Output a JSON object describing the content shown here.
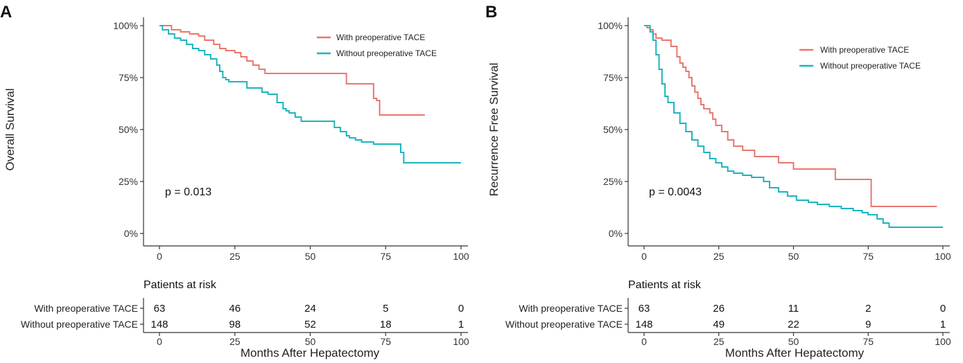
{
  "chart_data": [
    {
      "panel_label": "A",
      "type": "line",
      "subtype": "kaplan-meier step curve",
      "ylabel": "Overall Survival",
      "xlabel": "Months After Hepatectomy",
      "xlim": [
        0,
        100
      ],
      "ylim": [
        0,
        1
      ],
      "x_ticks": [
        "0",
        "25",
        "50",
        "75",
        "100"
      ],
      "y_ticks": [
        "0%",
        "25%",
        "50%",
        "75%",
        "100%"
      ],
      "grid": false,
      "legend_position": "top-right",
      "p_value_text": "p = 0.013",
      "series": [
        {
          "name": "With preoperative TACE",
          "color": "#E8776E",
          "x": [
            0,
            4,
            7,
            10,
            13,
            15,
            18,
            20,
            22,
            25,
            27,
            29,
            31,
            33,
            35,
            62,
            71,
            72,
            73,
            88
          ],
          "y": [
            1.0,
            0.98,
            0.97,
            0.96,
            0.95,
            0.93,
            0.91,
            0.89,
            0.88,
            0.87,
            0.85,
            0.83,
            0.81,
            0.79,
            0.77,
            0.72,
            0.65,
            0.64,
            0.57,
            0.57
          ]
        },
        {
          "name": "Without preoperative TACE",
          "color": "#1CB4BE",
          "x": [
            0,
            1,
            3,
            5,
            7,
            9,
            11,
            13,
            15,
            17,
            19,
            20,
            21,
            22,
            23,
            24,
            29,
            34,
            36,
            39,
            41,
            42,
            43,
            45,
            47,
            58,
            60,
            62,
            63,
            65,
            67,
            71,
            80,
            81,
            100
          ],
          "y": [
            1.0,
            0.98,
            0.96,
            0.94,
            0.93,
            0.91,
            0.89,
            0.88,
            0.86,
            0.84,
            0.81,
            0.78,
            0.75,
            0.74,
            0.73,
            0.73,
            0.7,
            0.68,
            0.67,
            0.63,
            0.6,
            0.59,
            0.58,
            0.56,
            0.54,
            0.51,
            0.49,
            0.47,
            0.46,
            0.45,
            0.44,
            0.43,
            0.39,
            0.34,
            0.34
          ]
        }
      ],
      "risk_table": {
        "title": "Patients at risk",
        "x_ticks": [
          "0",
          "25",
          "50",
          "75",
          "100"
        ],
        "rows": [
          {
            "label": "With preoperative TACE",
            "values": [
              "63",
              "46",
              "24",
              "5",
              "0"
            ]
          },
          {
            "label": "Without preoperative TACE",
            "values": [
              "148",
              "98",
              "52",
              "18",
              "1"
            ]
          }
        ],
        "xlabel": "Months After Hepatectomy"
      }
    },
    {
      "panel_label": "B",
      "type": "line",
      "subtype": "kaplan-meier step curve",
      "ylabel": "Recurrence Free Survival",
      "xlabel": "Months After Hepatectomy",
      "xlim": [
        0,
        100
      ],
      "ylim": [
        0,
        1
      ],
      "x_ticks": [
        "0",
        "25",
        "50",
        "75",
        "100"
      ],
      "y_ticks": [
        "0%",
        "25%",
        "50%",
        "75%",
        "100%"
      ],
      "grid": false,
      "legend_position": "top-right",
      "p_value_text": "p = 0.0043",
      "series": [
        {
          "name": "With preoperative TACE",
          "color": "#E8776E",
          "x": [
            0,
            1,
            2,
            3,
            4,
            6,
            9,
            11,
            12,
            13,
            14,
            15,
            16,
            17,
            18,
            19,
            20,
            22,
            23,
            24,
            26,
            28,
            30,
            33,
            37,
            45,
            50,
            64,
            76,
            98
          ],
          "y": [
            1.0,
            0.99,
            0.98,
            0.96,
            0.94,
            0.93,
            0.9,
            0.85,
            0.82,
            0.8,
            0.78,
            0.75,
            0.71,
            0.68,
            0.65,
            0.62,
            0.6,
            0.58,
            0.55,
            0.52,
            0.49,
            0.45,
            0.42,
            0.4,
            0.37,
            0.34,
            0.31,
            0.26,
            0.13,
            0.13
          ]
        },
        {
          "name": "Without preoperative TACE",
          "color": "#1CB4BE",
          "x": [
            0,
            2,
            3,
            4,
            5,
            6,
            7,
            8,
            10,
            12,
            14,
            16,
            18,
            20,
            22,
            24,
            26,
            28,
            30,
            33,
            36,
            40,
            42,
            45,
            48,
            51,
            55,
            58,
            62,
            66,
            70,
            73,
            75,
            78,
            80,
            82,
            100
          ],
          "y": [
            1.0,
            0.97,
            0.93,
            0.86,
            0.79,
            0.72,
            0.66,
            0.63,
            0.58,
            0.53,
            0.49,
            0.45,
            0.42,
            0.39,
            0.36,
            0.34,
            0.32,
            0.3,
            0.29,
            0.28,
            0.27,
            0.25,
            0.22,
            0.2,
            0.18,
            0.16,
            0.15,
            0.14,
            0.13,
            0.12,
            0.11,
            0.1,
            0.09,
            0.07,
            0.05,
            0.03,
            0.03
          ]
        }
      ],
      "risk_table": {
        "title": "Patients at risk",
        "x_ticks": [
          "0",
          "25",
          "50",
          "75",
          "100"
        ],
        "rows": [
          {
            "label": "With preoperative TACE",
            "values": [
              "63",
              "26",
              "11",
              "2",
              "0"
            ]
          },
          {
            "label": "Without preoperative TACE",
            "values": [
              "148",
              "49",
              "22",
              "9",
              "1"
            ]
          }
        ],
        "xlabel": "Months After Hepatectomy"
      }
    }
  ]
}
